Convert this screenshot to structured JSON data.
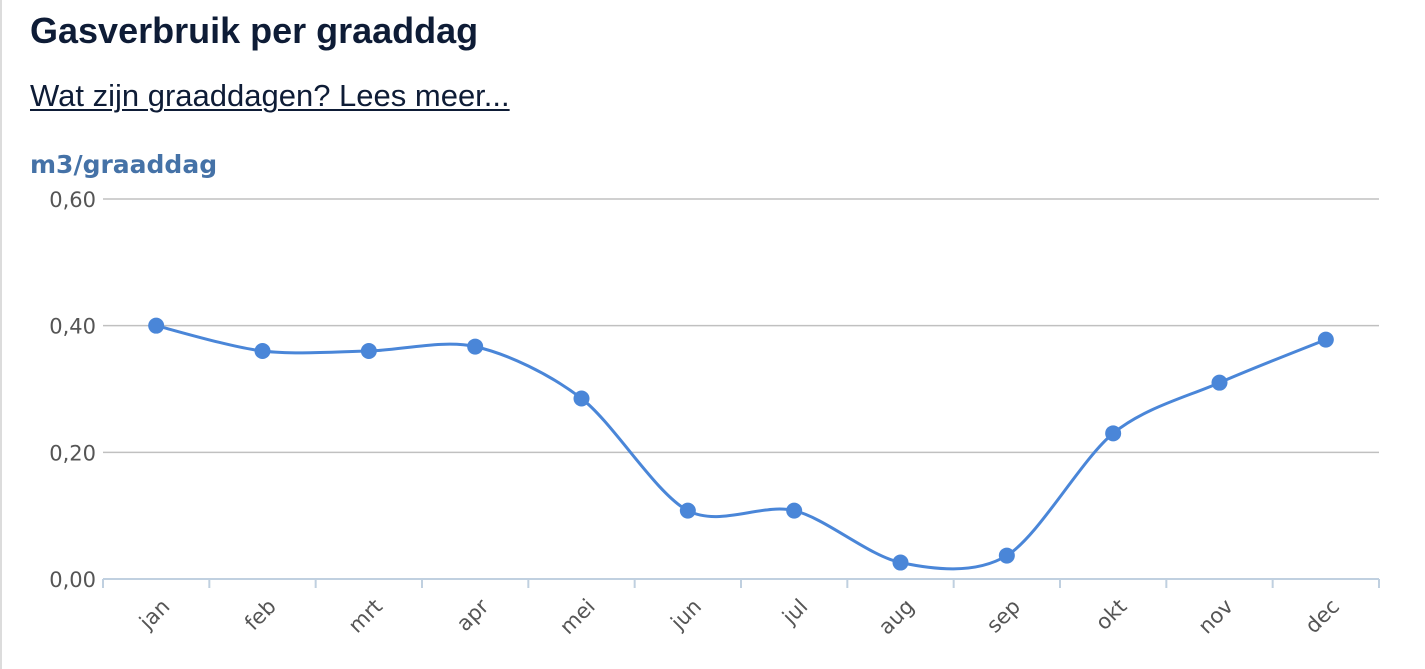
{
  "header": {
    "title": "Gasverbruik per graaddag",
    "info_link": "Wat zijn graaddagen? Lees meer..."
  },
  "chart_data": {
    "type": "line",
    "curve": "smooth",
    "ylabel": "m3/graaddag",
    "ylim": [
      0,
      0.6
    ],
    "yticks": [
      0,
      0.2,
      0.4,
      0.6
    ],
    "ytick_labels": [
      "0,00",
      "0,20",
      "0,40",
      "0,60"
    ],
    "grid": true,
    "categories": [
      "jan",
      "feb",
      "mrt",
      "apr",
      "mei",
      "jun",
      "jul",
      "aug",
      "sep",
      "okt",
      "nov",
      "dec"
    ],
    "series": [
      {
        "values": [
          0.4,
          0.36,
          0.36,
          0.367,
          0.285,
          0.108,
          0.108,
          0.026,
          0.037,
          0.23,
          0.31,
          0.378
        ],
        "color": "#4a86d8"
      }
    ]
  }
}
